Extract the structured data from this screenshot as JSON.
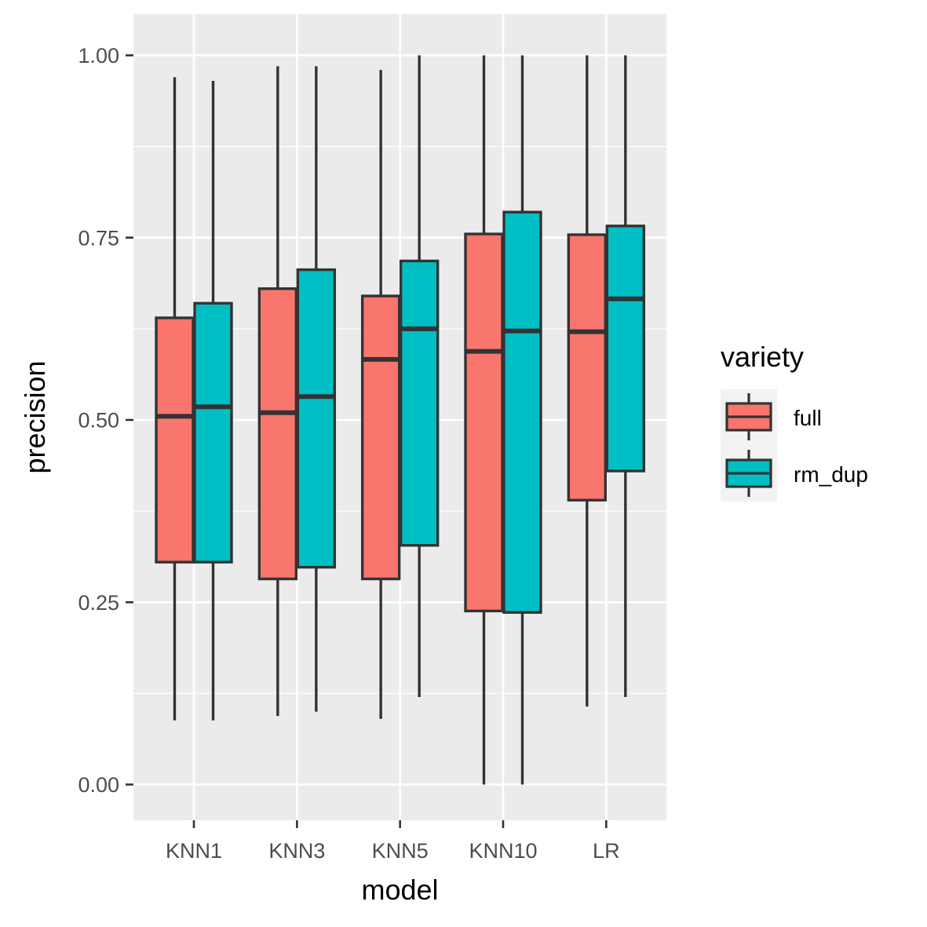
{
  "chart_data": {
    "type": "boxplot",
    "xlabel": "model",
    "ylabel": "precision",
    "ylim": [
      -0.05,
      1.05
    ],
    "yticks": [
      0.0,
      0.25,
      0.5,
      0.75,
      1.0
    ],
    "ytick_labels": [
      "0.00",
      "0.25",
      "0.50",
      "0.75",
      "1.00"
    ],
    "categories": [
      "KNN1",
      "KNN3",
      "KNN5",
      "KNN10",
      "LR"
    ],
    "grid": true,
    "legend": {
      "title": "variety",
      "position": "right"
    },
    "series": [
      {
        "name": "full",
        "color": "#F8766D",
        "boxes": [
          {
            "min": 0.088,
            "q1": 0.305,
            "median": 0.505,
            "q3": 0.64,
            "max": 0.97
          },
          {
            "min": 0.094,
            "q1": 0.282,
            "median": 0.51,
            "q3": 0.68,
            "max": 0.985
          },
          {
            "min": 0.09,
            "q1": 0.282,
            "median": 0.583,
            "q3": 0.67,
            "max": 0.98
          },
          {
            "min": 0.0,
            "q1": 0.238,
            "median": 0.594,
            "q3": 0.755,
            "max": 1.0
          },
          {
            "min": 0.107,
            "q1": 0.39,
            "median": 0.621,
            "q3": 0.754,
            "max": 1.0
          }
        ]
      },
      {
        "name": "rm_dup",
        "color": "#00BFC4",
        "boxes": [
          {
            "min": 0.088,
            "q1": 0.305,
            "median": 0.518,
            "q3": 0.66,
            "max": 0.965
          },
          {
            "min": 0.1,
            "q1": 0.298,
            "median": 0.532,
            "q3": 0.706,
            "max": 0.985
          },
          {
            "min": 0.12,
            "q1": 0.328,
            "median": 0.625,
            "q3": 0.718,
            "max": 1.0
          },
          {
            "min": 0.0,
            "q1": 0.236,
            "median": 0.622,
            "q3": 0.785,
            "max": 1.0
          },
          {
            "min": 0.12,
            "q1": 0.43,
            "median": 0.666,
            "q3": 0.766,
            "max": 1.0
          }
        ]
      }
    ]
  },
  "colors": {
    "panel_background": "#EBEBEB",
    "gridline": "#FFFFFF",
    "box_outline": "#333333"
  }
}
